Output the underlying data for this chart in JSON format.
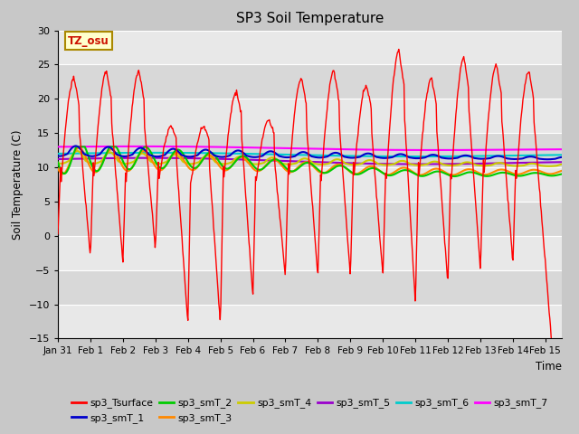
{
  "title": "SP3 Soil Temperature",
  "ylabel": "Soil Temperature (C)",
  "xlabel": "Time",
  "timezone_label": "TZ_osu",
  "ylim": [
    -15,
    30
  ],
  "yticks": [
    -15,
    -10,
    -5,
    0,
    5,
    10,
    15,
    20,
    25,
    30
  ],
  "xtick_labels": [
    "Jan 31",
    "Feb 1",
    "Feb 2",
    "Feb 3",
    "Feb 4",
    "Feb 5",
    "Feb 6",
    "Feb 7",
    "Feb 8",
    "Feb 9",
    "Feb 10",
    "Feb 11",
    "Feb 12",
    "Feb 13",
    "Feb 14",
    "Feb 15"
  ],
  "fig_facecolor": "#c8c8c8",
  "axes_facecolor": "#e8e8e8",
  "grid_color": "#ffffff",
  "band_colors": [
    "#e8e8e8",
    "#d8d8d8"
  ],
  "series_colors": {
    "sp3_Tsurface": "#ff0000",
    "sp3_smT_1": "#0000cc",
    "sp3_smT_2": "#00cc00",
    "sp3_smT_3": "#ff8800",
    "sp3_smT_4": "#cccc00",
    "sp3_smT_5": "#9900cc",
    "sp3_smT_6": "#00cccc",
    "sp3_smT_7": "#ff00ff"
  },
  "legend_order": [
    "sp3_Tsurface",
    "sp3_smT_1",
    "sp3_smT_2",
    "sp3_smT_3",
    "sp3_smT_4",
    "sp3_smT_5",
    "sp3_smT_6",
    "sp3_smT_7"
  ]
}
